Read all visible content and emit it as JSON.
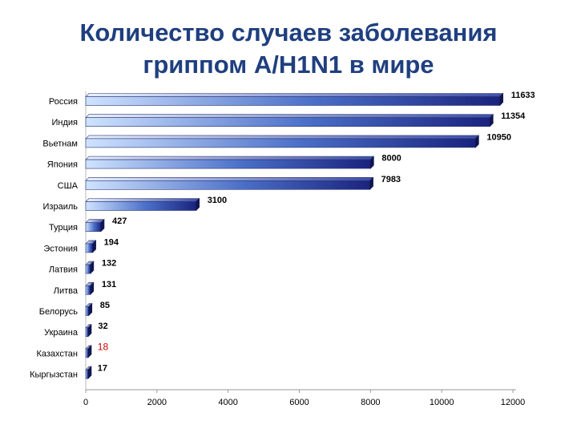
{
  "page": {
    "title_line1": "Количество случаев заболевания",
    "title_line2": "гриппом A/H1N1 в мире"
  },
  "chart_data": {
    "type": "bar",
    "orientation": "horizontal",
    "title": "Количество случаев заболевания гриппом A/H1N1 в мире",
    "categories": [
      "Россия",
      "Индия",
      "Вьетнам",
      "Япония",
      "США",
      "Израиль",
      "Турция",
      "Эстония",
      "Латвия",
      "Литва",
      "Белорусь",
      "Украина",
      "Казахстан",
      "Кыргызстан"
    ],
    "values": [
      11633,
      11354,
      10950,
      8000,
      7983,
      3100,
      427,
      194,
      132,
      131,
      85,
      32,
      18,
      17
    ],
    "value_labels": [
      "11633",
      "11354",
      "10950",
      "8000",
      "7983",
      "3100",
      "427",
      "194",
      "132",
      "131",
      "85",
      "32",
      "18",
      "17"
    ],
    "highlight_index": 12,
    "highlight_color": "#cc0000",
    "xlim": [
      0,
      12000
    ],
    "xticks": [
      "0",
      "2000",
      "4000",
      "6000",
      "8000",
      "10000",
      "12000"
    ],
    "xlabel": "",
    "ylabel": "",
    "grid": false,
    "legend": "none",
    "bar_colors": {
      "light": "#cfe3ff",
      "dark": "#1a237e"
    }
  }
}
